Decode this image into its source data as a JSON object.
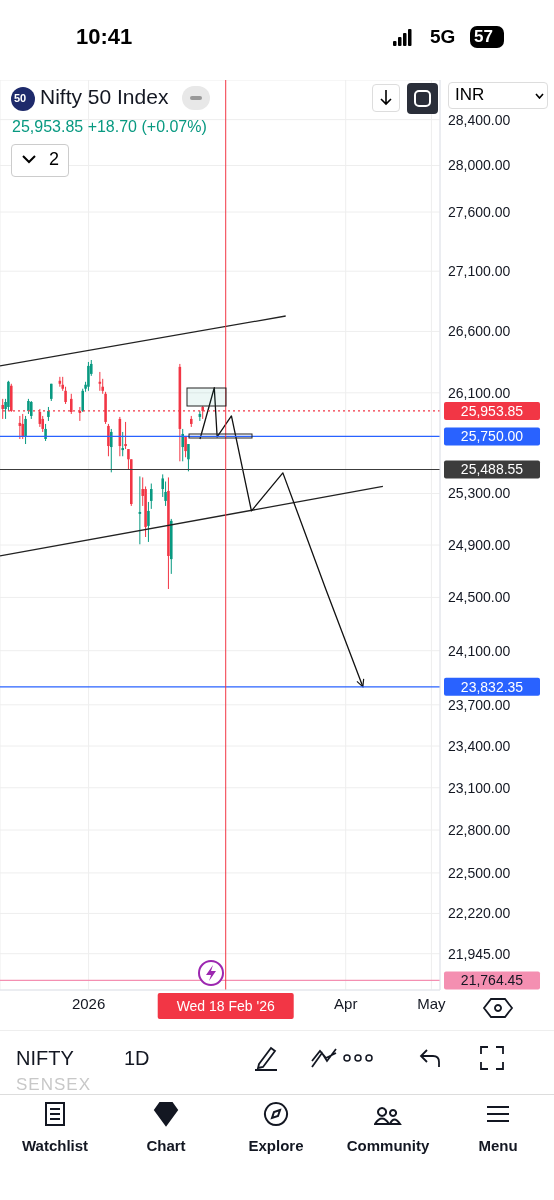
{
  "chart_data": {
    "type": "candlestick",
    "title": "Nifty 50 Index",
    "subtitle": "25,953.85 +18.70 (+0.07%)",
    "x": [
      "2025-12-02",
      "2025-12-03",
      "2025-12-04",
      "2025-12-05",
      "2025-12-08",
      "2025-12-09",
      "2025-12-10",
      "2025-12-11",
      "2025-12-12",
      "2025-12-15",
      "2025-12-16",
      "2025-12-17",
      "2025-12-18",
      "2025-12-19",
      "2025-12-22",
      "2025-12-23",
      "2025-12-24",
      "2025-12-26",
      "2025-12-29",
      "2025-12-30",
      "2025-12-31",
      "2026-01-01",
      "2026-01-02",
      "2026-01-05",
      "2026-01-06",
      "2026-01-07",
      "2026-01-08",
      "2026-01-09",
      "2026-01-12",
      "2026-01-13",
      "2026-01-14",
      "2026-01-15",
      "2026-01-16",
      "2026-01-19",
      "2026-01-20",
      "2026-01-21",
      "2026-01-22",
      "2026-01-23",
      "2026-01-27",
      "2026-01-28",
      "2026-01-29",
      "2026-01-30",
      "2026-02-02",
      "2026-02-03",
      "2026-02-04",
      "2026-02-05",
      "2026-02-06",
      "2026-02-09",
      "2026-02-10"
    ],
    "ohlc": [
      [
        26002,
        26051,
        25890,
        25970
      ],
      [
        25970,
        26051,
        25890,
        26026
      ],
      [
        25986,
        26197,
        25954,
        26189
      ],
      [
        26157,
        26173,
        25946,
        25954
      ],
      [
        25858,
        25914,
        25730,
        25834
      ],
      [
        25850,
        25930,
        25730,
        25746
      ],
      [
        25754,
        25914,
        25690,
        25890
      ],
      [
        25954,
        26051,
        25930,
        26034
      ],
      [
        25914,
        26034,
        25890,
        26026
      ],
      [
        25946,
        25970,
        25826,
        25850
      ],
      [
        25890,
        25914,
        25786,
        25810
      ],
      [
        25730,
        25850,
        25714,
        25810
      ],
      [
        25906,
        25986,
        25874,
        25954
      ],
      [
        26051,
        26173,
        26034,
        26173
      ],
      [
        26197,
        26229,
        26149,
        26173
      ],
      [
        26165,
        26229,
        26116,
        26133
      ],
      [
        26116,
        26149,
        26010,
        26026
      ],
      [
        26051,
        26092,
        25930,
        25946
      ],
      [
        25954,
        25986,
        25874,
        25938
      ],
      [
        25954,
        26133,
        25946,
        26116
      ],
      [
        26133,
        26189,
        26108,
        26165
      ],
      [
        26149,
        26350,
        26116,
        26318
      ],
      [
        26253,
        26366,
        26237,
        26334
      ],
      [
        26189,
        26269,
        26116,
        26173
      ],
      [
        26149,
        26213,
        26092,
        26116
      ],
      [
        26092,
        26108,
        25850,
        25866
      ],
      [
        25834,
        25850,
        25593,
        25674
      ],
      [
        25666,
        25810,
        25466,
        25786
      ],
      [
        25890,
        25906,
        25593,
        25674
      ],
      [
        25642,
        25786,
        25593,
        25658
      ],
      [
        25690,
        25866,
        25650,
        25674
      ],
      [
        25650,
        25650,
        25490,
        25569
      ],
      [
        25569,
        25569,
        25203,
        25218
      ],
      [
        25141,
        25434,
        24906,
        25156
      ],
      [
        25335,
        25426,
        25203,
        25281
      ],
      [
        25335,
        25355,
        24962,
        25040
      ],
      [
        25048,
        25234,
        24924,
        25164
      ],
      [
        25242,
        25378,
        25180,
        25335
      ],
      [
        25335,
        25450,
        25273,
        25418
      ],
      [
        25242,
        25394,
        25203,
        25312
      ],
      [
        25320,
        25426,
        24564,
        24816
      ],
      [
        24792,
        25102,
        24679,
        25087
      ],
      [
        26310,
        26334,
        25553,
        25810
      ],
      [
        25666,
        25810,
        25553,
        25770
      ],
      [
        25754,
        25754,
        25585,
        25634
      ],
      [
        25569,
        25690,
        25474,
        25690
      ],
      [
        25890,
        25914,
        25826,
        25850
      ],
      [
        25906,
        25954,
        25874,
        25930
      ],
      [
        25986,
        25994,
        25890,
        25953.85
      ]
    ],
    "colors": [
      "#f23645",
      "#089981",
      "#089981",
      "#f23645",
      "#f23645",
      "#f23645",
      "#089981",
      "#089981",
      "#089981",
      "#f23645",
      "#f23645",
      "#089981",
      "#089981",
      "#089981",
      "#f23645",
      "#f23645",
      "#f23645",
      "#f23645",
      "#f23645",
      "#089981",
      "#089981",
      "#089981",
      "#089981",
      "#f23645",
      "#f23645",
      "#f23645",
      "#f23645",
      "#089981",
      "#f23645",
      "#089981",
      "#f23645",
      "#f23645",
      "#f23645",
      "#089981",
      "#f23645",
      "#f23645",
      "#089981",
      "#089981",
      "#089981",
      "#089981",
      "#f23645",
      "#089981",
      "#f23645",
      "#089981",
      "#f23645",
      "#089981",
      "#f23645",
      "#089981",
      "#f23645"
    ],
    "series": [
      {
        "type": "line",
        "color": "#222222",
        "x": [
          "2025-12-01",
          "2026-03-11"
        ],
        "values": [
          26318,
          26727
        ]
      },
      {
        "type": "line",
        "color": "#222222",
        "x": [
          "2025-12-01",
          "2026-04-14"
        ],
        "values": [
          24816,
          25355
        ]
      },
      {
        "type": "line",
        "color": "#111111",
        "x": [
          "2026-02-09",
          "2026-02-14",
          "2026-02-15",
          "2026-02-20",
          "2026-02-27",
          "2026-03-10",
          "2026-03-25",
          "2026-04-07"
        ],
        "values": [
          25730,
          26141,
          25746,
          25914,
          25164,
          25462,
          24564,
          23832
        ]
      }
    ],
    "log": true,
    "grid": true,
    "xlim": [
      "2025-12-01",
      "2026-05-04"
    ],
    "xticks": [
      {
        "value": "2026-01-01",
        "label": "2026"
      },
      {
        "value": "2026-04-01",
        "label": "Apr"
      },
      {
        "value": "2026-05-01",
        "label": "May"
      }
    ],
    "ylim": [
      21700,
      28750
    ],
    "yticks": [
      {
        "value": 28400,
        "label": "28,400.00"
      },
      {
        "value": 28000,
        "label": "28,000.00"
      },
      {
        "value": 27600,
        "label": "27,600.00"
      },
      {
        "value": 27100,
        "label": "27,100.00"
      },
      {
        "value": 26600,
        "label": "26,600.00"
      },
      {
        "value": 26100,
        "label": "26,100.00"
      },
      {
        "value": 25300,
        "label": "25,300.00"
      },
      {
        "value": 24900,
        "label": "24,900.00"
      },
      {
        "value": 24500,
        "label": "24,500.00"
      },
      {
        "value": 24100,
        "label": "24,100.00"
      },
      {
        "value": 23700,
        "label": "23,700.00"
      },
      {
        "value": 23400,
        "label": "23,400.00"
      },
      {
        "value": 23100,
        "label": "23,100.00"
      },
      {
        "value": 22800,
        "label": "22,800.00"
      },
      {
        "value": 22500,
        "label": "22,500.00"
      },
      {
        "value": 22220,
        "label": "22,220.00"
      },
      {
        "value": 21945,
        "label": "21,945.00"
      }
    ],
    "ref_lines": [
      {
        "axis": "y",
        "value": 25953.85,
        "label": "25,953.85",
        "color": "#f23645",
        "line_style": "dotted"
      },
      {
        "axis": "y",
        "value": 25750,
        "label": "25,750.00",
        "color": "#2962ff"
      },
      {
        "axis": "y",
        "value": 25488.55,
        "label": "25,488.55",
        "color": "#3c3c3c"
      },
      {
        "axis": "y",
        "value": 23832.35,
        "label": "23,832.35",
        "color": "#2962ff"
      },
      {
        "axis": "y",
        "value": 21764.45,
        "label": "21,764.45",
        "color": "#f48fb1"
      },
      {
        "axis": "x",
        "value": "2026-02-18",
        "label": "Wed 18 Feb '26",
        "color": "#f23645"
      }
    ],
    "annotations": [
      "10:41",
      "5G",
      "57",
      "50",
      "2",
      "INR",
      "NIFTY",
      "1D",
      "SENSEX",
      "Watchlist",
      "Chart",
      "Explore",
      "Community",
      "Menu"
    ]
  }
}
